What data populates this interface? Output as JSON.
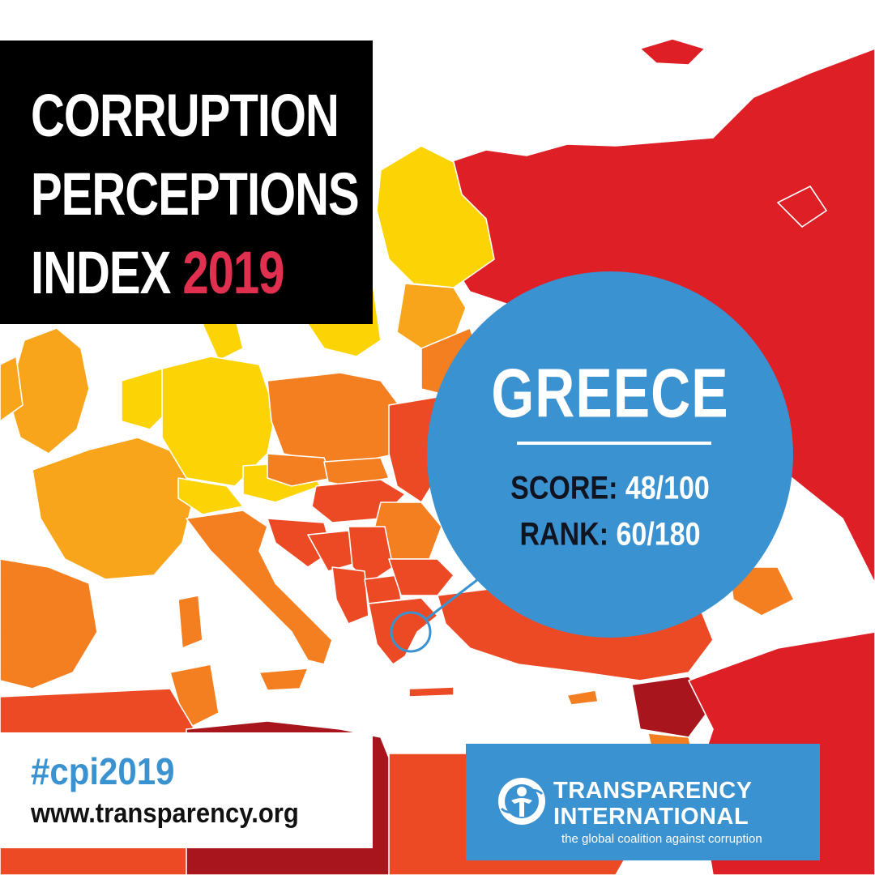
{
  "title": {
    "line1": "CORRUPTION",
    "line2": "PERCEPTIONS",
    "line3_prefix": "INDEX",
    "year": "2019"
  },
  "country": {
    "name": "GREECE",
    "score_label": "SCORE:",
    "score_value": "48/100",
    "rank_label": "RANK:",
    "rank_value": "60/180"
  },
  "footer": {
    "hashtag": "#cpi2019",
    "url": "www.transparency.org"
  },
  "organization": {
    "name_line1": "TRANSPARENCY",
    "name_line2": "INTERNATIONAL",
    "tagline": "the global coalition against corruption",
    "logo_icon": "transparency-international-logo"
  },
  "colors": {
    "title_background": "#000000",
    "year_accent": "#e1304f",
    "bubble_blue": "#3a92d0",
    "very_high_corruption": "#a8151c",
    "high_corruption": "#de1f26",
    "medium_high_corruption": "#ec4a24",
    "medium_corruption": "#f47f20",
    "medium_low_corruption": "#f8a51c",
    "low_corruption": "#fcd406",
    "water": "#ffffff"
  }
}
